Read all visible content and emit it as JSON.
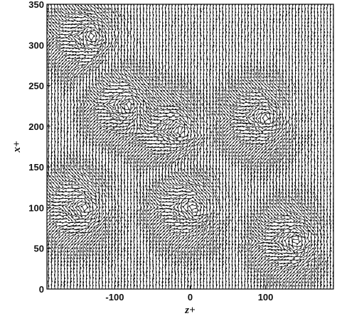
{
  "chart_data": {
    "type": "vector_field",
    "xlabel": "z+",
    "ylabel": "x+",
    "xlim": [
      -190,
      190
    ],
    "ylim": [
      0,
      350
    ],
    "xticks": [
      -100,
      0,
      100
    ],
    "yticks": [
      0,
      50,
      100,
      150,
      200,
      250,
      300,
      350
    ],
    "grid": false,
    "vector_color": "#000000",
    "field_description_regions": [
      {
        "z": -130,
        "x": 310,
        "pattern": "dense-swirl"
      },
      {
        "z": -80,
        "x": 225,
        "pattern": "dense-swirl"
      },
      {
        "z": -140,
        "x": 100,
        "pattern": "dense-swirl"
      },
      {
        "z": -15,
        "x": 195,
        "pattern": "dense-swirl"
      },
      {
        "z": 5,
        "x": 100,
        "pattern": "dense-swirl"
      },
      {
        "z": 100,
        "x": 210,
        "pattern": "dense-swirl"
      },
      {
        "z": 140,
        "x": 60,
        "pattern": "dense-swirl"
      }
    ]
  }
}
